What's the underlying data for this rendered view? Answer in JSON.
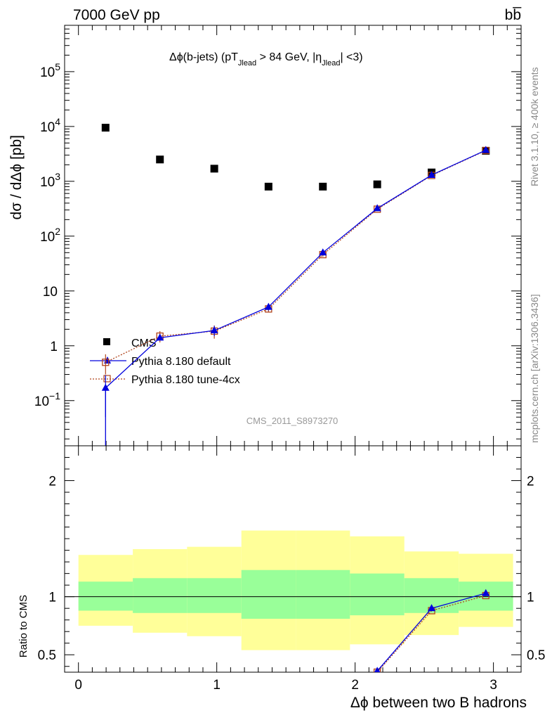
{
  "header": {
    "left": "7000 GeV pp",
    "right": "bb̅"
  },
  "side": {
    "top": "Rivet 3.1.10, ≥ 400k events",
    "bottom": "mcplots.cern.ch [arXiv:1306.3436]"
  },
  "chart_data": {
    "type": "scatter",
    "title": "Δϕ(b-jets) (pT",
    "title_parts": {
      "a": "Δϕ(b-jets) (pT",
      "sub1": "Jlead",
      "b": " >  84 GeV, |η",
      "sub2": "Jlead",
      "c": "| <3)"
    },
    "analysis_label": "CMS_2011_S8973270",
    "xlabel": "Δϕ between two B hadrons",
    "ylabel": "dσ / dΔϕ [pb]",
    "ylabel_ratio": "Ratio to CMS",
    "xlim": [
      -0.1,
      3.2
    ],
    "ylim": [
      0.015,
      700000
    ],
    "y_scale": "log",
    "ylim_ratio": [
      0.35,
      2.3
    ],
    "x_ticks": [
      0,
      1,
      2,
      3
    ],
    "y_ticks_main": [
      {
        "v": 0.1,
        "base": "10",
        "exp": "−1"
      },
      {
        "v": 1,
        "base": "1",
        "exp": ""
      },
      {
        "v": 10,
        "base": "10",
        "exp": ""
      },
      {
        "v": 100,
        "base": "10",
        "exp": "2"
      },
      {
        "v": 1000,
        "base": "10",
        "exp": "3"
      },
      {
        "v": 10000,
        "base": "10",
        "exp": "4"
      },
      {
        "v": 100000,
        "base": "10",
        "exp": "5"
      }
    ],
    "y_ticks_ratio": [
      {
        "v": 0.5,
        "label": "0.5"
      },
      {
        "v": 1,
        "label": "1"
      },
      {
        "v": 2,
        "label": "2"
      }
    ],
    "bin_edges": [
      0,
      0.393,
      0.785,
      1.178,
      1.571,
      1.963,
      2.356,
      2.749,
      3.142
    ],
    "x": [
      0.196,
      0.589,
      0.982,
      1.374,
      1.767,
      2.16,
      2.553,
      2.945
    ],
    "legend_position": "lower-left",
    "series": [
      {
        "name": "CMS",
        "color": "#000000",
        "marker": "square-filled",
        "values": [
          9500,
          2500,
          1700,
          800,
          800,
          880,
          1450,
          3600
        ],
        "ratio_band_inner": [
          [
            0.88,
            1.13
          ],
          [
            0.86,
            1.16
          ],
          [
            0.86,
            1.16
          ],
          [
            0.81,
            1.23
          ],
          [
            0.81,
            1.23
          ],
          [
            0.84,
            1.2
          ],
          [
            0.86,
            1.16
          ],
          [
            0.88,
            1.13
          ]
        ],
        "ratio_band_outer": [
          [
            0.75,
            1.36
          ],
          [
            0.69,
            1.41
          ],
          [
            0.66,
            1.43
          ],
          [
            0.54,
            1.57
          ],
          [
            0.54,
            1.57
          ],
          [
            0.59,
            1.52
          ],
          [
            0.67,
            1.39
          ],
          [
            0.74,
            1.37
          ]
        ]
      },
      {
        "name": "Pythia 8.180 default",
        "color": "#0000dd",
        "marker": "triangle-filled",
        "values": [
          0.17,
          1.4,
          1.9,
          5.1,
          50,
          320,
          1300,
          3700
        ],
        "errors": [
          0.12,
          0.15,
          0.4,
          0.7,
          4,
          15,
          40,
          80
        ],
        "ratio": [
          2e-05,
          0.00056,
          0.0011,
          0.0064,
          0.062,
          0.36,
          0.9,
          1.03
        ]
      },
      {
        "name": "Pythia 8.180 tune-4cx",
        "color": "#b0441c",
        "marker": "square-open",
        "values": [
          0.5,
          1.5,
          1.85,
          4.7,
          46,
          310,
          1280,
          3650
        ],
        "errors": [
          0.2,
          0.35,
          0.5,
          0.6,
          4,
          15,
          40,
          80
        ],
        "ratio": [
          5e-05,
          0.0006,
          0.0011,
          0.0059,
          0.058,
          0.35,
          0.88,
          1.01
        ]
      }
    ],
    "band_colors": {
      "inner": "#99ff99",
      "outer": "#ffff99"
    }
  }
}
